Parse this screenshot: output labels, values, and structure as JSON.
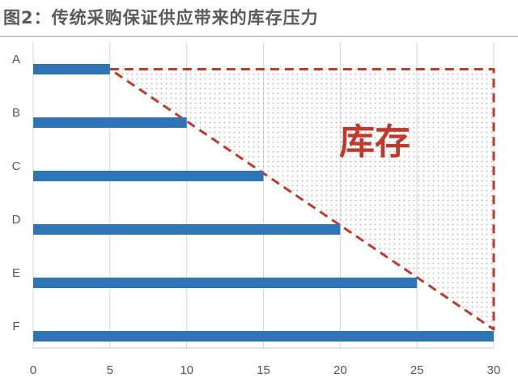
{
  "title": "图2：传统采购保证供应带来的库存压力",
  "chart_data": {
    "type": "bar",
    "orientation": "horizontal",
    "categories": [
      "A",
      "B",
      "C",
      "D",
      "E",
      "F"
    ],
    "values": [
      5,
      10,
      15,
      20,
      25,
      30
    ],
    "xlim": [
      0,
      30
    ],
    "xticks": [
      0,
      5,
      10,
      15,
      20,
      25,
      30
    ],
    "grid": true,
    "bar_color": "#2e75b6",
    "annotation": {
      "label": "库存",
      "color": "#c0392b",
      "region": "dotted triangle between bar tips (5→30) and x = 30"
    }
  }
}
